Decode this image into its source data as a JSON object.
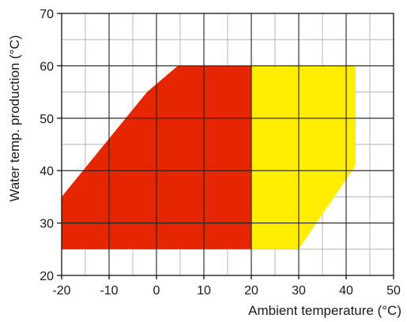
{
  "chart_data": {
    "type": "area",
    "xlabel": "Ambient temperature (°C)",
    "ylabel": "Water temp. production (°C)",
    "xlim": [
      -20,
      50
    ],
    "ylim": [
      20,
      70
    ],
    "x_ticks": [
      -20,
      -10,
      0,
      10,
      20,
      30,
      40,
      50
    ],
    "x_tick_labels": [
      "-20",
      "-10",
      "0",
      "10",
      "20",
      "30",
      "40",
      "50"
    ],
    "y_ticks": [
      20,
      30,
      40,
      50,
      60,
      70
    ],
    "y_tick_labels": [
      "20",
      "30",
      "40",
      "50",
      "60",
      "70"
    ],
    "grid": true,
    "minor_grid_step": {
      "x": 5,
      "y": 5
    },
    "regions": [
      {
        "color": "#e52600",
        "points": [
          [
            -20,
            25
          ],
          [
            20,
            25
          ],
          [
            20,
            60
          ],
          [
            4.5,
            60
          ],
          [
            -2,
            55
          ],
          [
            -20,
            35
          ]
        ]
      },
      {
        "color": "#ffed00",
        "points": [
          [
            20,
            25
          ],
          [
            30,
            25
          ],
          [
            42,
            41
          ],
          [
            42,
            60
          ],
          [
            20,
            60
          ]
        ]
      }
    ]
  }
}
